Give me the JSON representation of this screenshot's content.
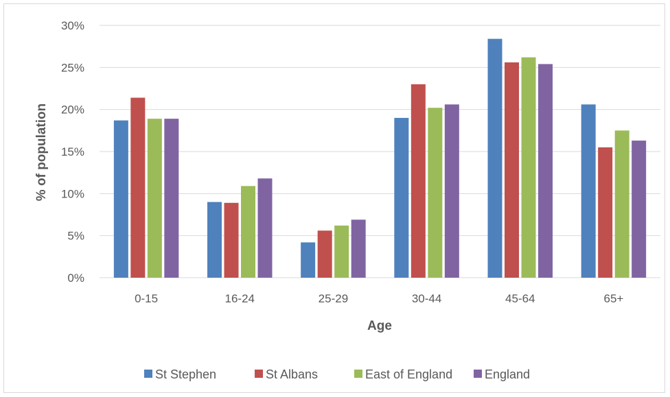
{
  "chart_data": {
    "type": "bar",
    "categories": [
      "0-15",
      "16-24",
      "25-29",
      "30-44",
      "45-64",
      "65+"
    ],
    "series": [
      {
        "name": "St Stephen",
        "color": "#4f81bd",
        "values": [
          18.7,
          9.0,
          4.2,
          19.0,
          28.4,
          20.6
        ]
      },
      {
        "name": "St Albans",
        "color": "#c0504d",
        "values": [
          21.4,
          8.9,
          5.6,
          23.0,
          25.6,
          15.5
        ]
      },
      {
        "name": "East of England",
        "color": "#9bbb59",
        "values": [
          18.9,
          10.9,
          6.2,
          20.2,
          26.2,
          17.5
        ]
      },
      {
        "name": "England",
        "color": "#8064a2",
        "values": [
          18.9,
          11.8,
          6.9,
          20.6,
          25.4,
          16.3
        ]
      }
    ],
    "title": "",
    "xlabel": "Age",
    "ylabel": "% of population",
    "ylim": [
      0,
      30
    ],
    "yticks": [
      "0%",
      "5%",
      "10%",
      "15%",
      "20%",
      "25%",
      "30%"
    ],
    "grid": true,
    "legend_position": "bottom"
  }
}
